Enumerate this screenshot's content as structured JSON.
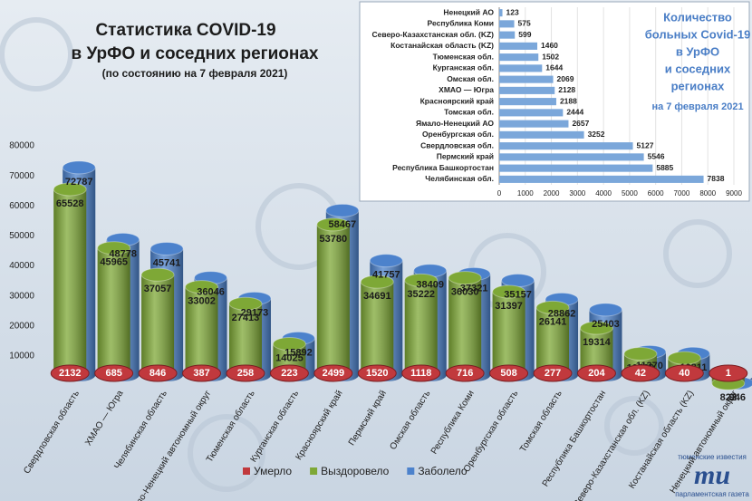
{
  "chart_data": [
    {
      "type": "bar",
      "orientation": "vertical",
      "title": [
        "Статистика COVID-19",
        "в УрФО и соседних регионах"
      ],
      "subtitle": "(по состоянию на 7 февраля 2021)",
      "categories": [
        "Свердловская область",
        "ХМАО — Югра",
        "Челябинская область",
        "Ямало-Ненецкий автономный округ",
        "Тюменская область",
        "Курганская область",
        "Красноярский край",
        "Пермский край",
        "Омская область",
        "Республика Коми",
        "Оренбургская область",
        "Томская область",
        "Республика Башкортостан",
        "Северо-Казахстанская обл. (KZ)",
        "Костанайская область (KZ)",
        "Ненецкий автономный округ"
      ],
      "series": [
        {
          "name": "Умерло",
          "color": "#c1393d",
          "values": [
            2132,
            685,
            846,
            387,
            258,
            223,
            2499,
            1520,
            1118,
            716,
            508,
            277,
            204,
            42,
            40,
            1
          ]
        },
        {
          "name": "Выздоровело",
          "color": "#7ea836",
          "values": [
            65528,
            45965,
            37057,
            33002,
            27413,
            14025,
            53780,
            34691,
            35222,
            36030,
            31397,
            26141,
            19314,
            10729,
            9311,
            822
          ]
        },
        {
          "name": "Заболело",
          "color": "#4c82cc",
          "values": [
            72787,
            48778,
            45741,
            36046,
            29173,
            15892,
            58467,
            41757,
            38409,
            37321,
            35157,
            28862,
            25403,
            11370,
            10811,
            946
          ]
        }
      ],
      "ylim": [
        0,
        80000
      ],
      "yticks": [
        10000,
        20000,
        30000,
        40000,
        50000,
        60000,
        70000,
        80000
      ],
      "legend": "bottom"
    },
    {
      "type": "bar",
      "orientation": "horizontal",
      "title": [
        "Количество",
        "больных Covid-19",
        "в УрФО",
        "и соседних",
        "регионах"
      ],
      "subtitle": "на 7 февраля 2021",
      "categories": [
        "Ненецкий АО",
        "Республика Коми",
        "Северо-Казахстанская обл. (KZ)",
        "Костанайская область (KZ)",
        "Тюменская обл.",
        "Курганская обл.",
        "Омская обл.",
        "ХМАО — Югра",
        "Красноярский край",
        "Томская обл.",
        "Ямало-Ненецкий АО",
        "Оренбургская обл.",
        "Свердловская обл.",
        "Пермский край",
        "Республика Башкортостан",
        "Челябинская обл."
      ],
      "values": [
        123,
        575,
        599,
        1460,
        1502,
        1644,
        2069,
        2128,
        2188,
        2444,
        2657,
        3252,
        5127,
        5546,
        5885,
        7838
      ],
      "color": "#7ba7da",
      "xlim": [
        0,
        9000
      ],
      "xticks": [
        0,
        1000,
        2000,
        3000,
        4000,
        5000,
        6000,
        7000,
        8000,
        9000
      ]
    }
  ],
  "logo": {
    "top": "тюменские известия",
    "mark": "ти",
    "bottom": "парламентская газета"
  }
}
